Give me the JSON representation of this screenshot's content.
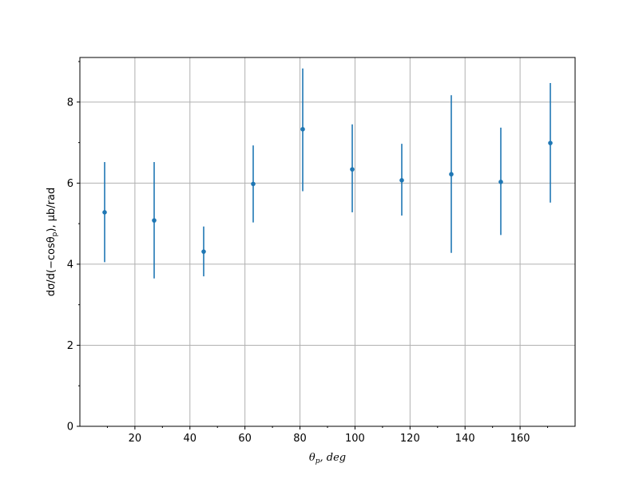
{
  "chart_data": {
    "type": "scatter",
    "title": "",
    "xlabel_main": "θ",
    "xlabel_sub": "p",
    "xlabel_rest": ", deg",
    "ylabel_a": "dσ/d(−cosθ",
    "ylabel_sub": "p",
    "ylabel_b": "), μb/rad",
    "xlim": [
      0,
      180
    ],
    "ylim": [
      0,
      9.1
    ],
    "xticks": [
      20,
      40,
      60,
      80,
      100,
      120,
      140,
      160
    ],
    "yticks": [
      0,
      2,
      4,
      6,
      8
    ],
    "grid": true,
    "color": "#1f77b4",
    "series": [
      {
        "x": [
          9,
          27,
          45,
          63,
          81,
          99,
          117,
          135,
          153,
          171
        ],
        "y": [
          5.28,
          5.08,
          4.31,
          5.98,
          7.33,
          6.34,
          6.07,
          6.22,
          6.03,
          6.99
        ],
        "yerr_low": [
          4.05,
          3.65,
          3.7,
          5.03,
          5.8,
          5.28,
          5.2,
          4.28,
          4.72,
          5.52
        ],
        "yerr_high": [
          6.52,
          6.52,
          4.93,
          6.93,
          8.83,
          7.45,
          6.97,
          8.17,
          7.37,
          8.47
        ]
      }
    ]
  }
}
